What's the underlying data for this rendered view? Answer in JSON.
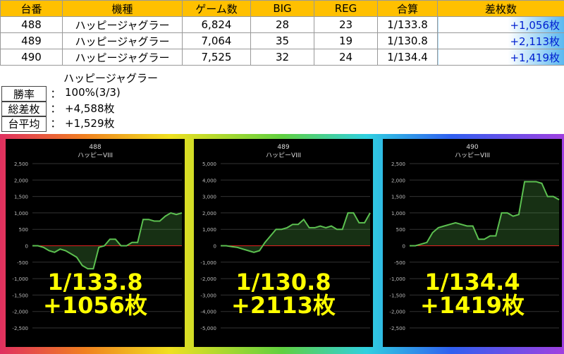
{
  "table": {
    "headers": [
      "台番",
      "機種",
      "ゲーム数",
      "BIG",
      "REG",
      "合算",
      "差枚数"
    ],
    "rows": [
      [
        "488",
        "ハッピージャグラー",
        "6,824",
        "28",
        "23",
        "1/133.8",
        "+1,056枚"
      ],
      [
        "489",
        "ハッピージャグラー",
        "7,064",
        "35",
        "19",
        "1/130.8",
        "+2,113枚"
      ],
      [
        "490",
        "ハッピージャグラー",
        "7,525",
        "32",
        "24",
        "1/134.4",
        "+1,419枚"
      ]
    ]
  },
  "summary": {
    "title": "ハッピージャグラー",
    "rows": [
      [
        "勝率",
        "：",
        "100%(3/3)"
      ],
      [
        "総差枚",
        "：",
        "+4,588枚"
      ],
      [
        "台平均",
        "：",
        "+1,529枚"
      ]
    ]
  },
  "charts": [
    {
      "type": "line",
      "title": "488",
      "subtitle": "ハッピーVIII",
      "ylim": [
        -2500,
        2500
      ],
      "yticks": [
        {
          "value": -2500,
          "label": "-2,500"
        },
        {
          "value": -2000,
          "label": "-2,000"
        },
        {
          "value": -1500,
          "label": "-1,500"
        },
        {
          "value": -1000,
          "label": "-1,000"
        },
        {
          "value": -500,
          "label": "-500"
        },
        0,
        500,
        {
          "value": 1000,
          "label": "1,000"
        },
        {
          "value": 1500,
          "label": "1,500"
        },
        {
          "value": 2000,
          "label": "2,000"
        },
        {
          "value": 2500,
          "label": "2,500"
        }
      ],
      "values": [
        0,
        0,
        -50,
        -150,
        -200,
        -100,
        -150,
        -250,
        -350,
        -600,
        -700,
        -700,
        -50,
        0,
        200,
        200,
        0,
        0,
        100,
        100,
        800,
        800,
        750,
        750,
        900,
        1000,
        950,
        1000
      ],
      "color": "#5cc050",
      "overlay": [
        "1/133.8",
        "+1056枚"
      ]
    },
    {
      "type": "line",
      "title": "489",
      "subtitle": "ハッピーVIII",
      "ylim": [
        -5000,
        5000
      ],
      "yticks": [
        {
          "value": -5000,
          "label": "-5,000"
        },
        {
          "value": -4000,
          "label": "-4,000"
        },
        {
          "value": -3000,
          "label": "-3,000"
        },
        {
          "value": -2000,
          "label": "-2,000"
        },
        {
          "value": -1000,
          "label": "-1,000"
        },
        0,
        {
          "value": 1000,
          "label": "1,000"
        },
        {
          "value": 2000,
          "label": "2,000"
        },
        {
          "value": 3000,
          "label": "3,000"
        },
        {
          "value": 4000,
          "label": "4,000"
        },
        {
          "value": 5000,
          "label": "5,000"
        }
      ],
      "values": [
        0,
        0,
        -50,
        -100,
        -200,
        -300,
        -400,
        -300,
        200,
        600,
        1000,
        1000,
        1100,
        1300,
        1300,
        1600,
        1100,
        1100,
        1200,
        1100,
        1200,
        1000,
        1000,
        2000,
        2000,
        1400,
        1400,
        2000
      ],
      "color": "#5cc050",
      "overlay": [
        "1/130.8",
        "+2113枚"
      ]
    },
    {
      "type": "line",
      "title": "490",
      "subtitle": "ハッピーVIII",
      "ylim": [
        -2500,
        2500
      ],
      "yticks": [
        {
          "value": -2500,
          "label": "-2,500"
        },
        {
          "value": -2000,
          "label": "-2,000"
        },
        {
          "value": -1500,
          "label": "-1,500"
        },
        {
          "value": -1000,
          "label": "-1,000"
        },
        {
          "value": -500,
          "label": "-500"
        },
        0,
        500,
        {
          "value": 1000,
          "label": "1,000"
        },
        {
          "value": 1500,
          "label": "1,500"
        },
        {
          "value": 2000,
          "label": "2,000"
        },
        {
          "value": 2500,
          "label": "2,500"
        }
      ],
      "values": [
        0,
        0,
        50,
        100,
        400,
        550,
        600,
        650,
        700,
        650,
        600,
        600,
        200,
        200,
        300,
        300,
        1000,
        1000,
        900,
        950,
        1950,
        1950,
        1950,
        1900,
        1500,
        1500,
        1400
      ],
      "color": "#5cc050",
      "overlay": [
        "1/134.4",
        "+1419枚"
      ]
    }
  ]
}
